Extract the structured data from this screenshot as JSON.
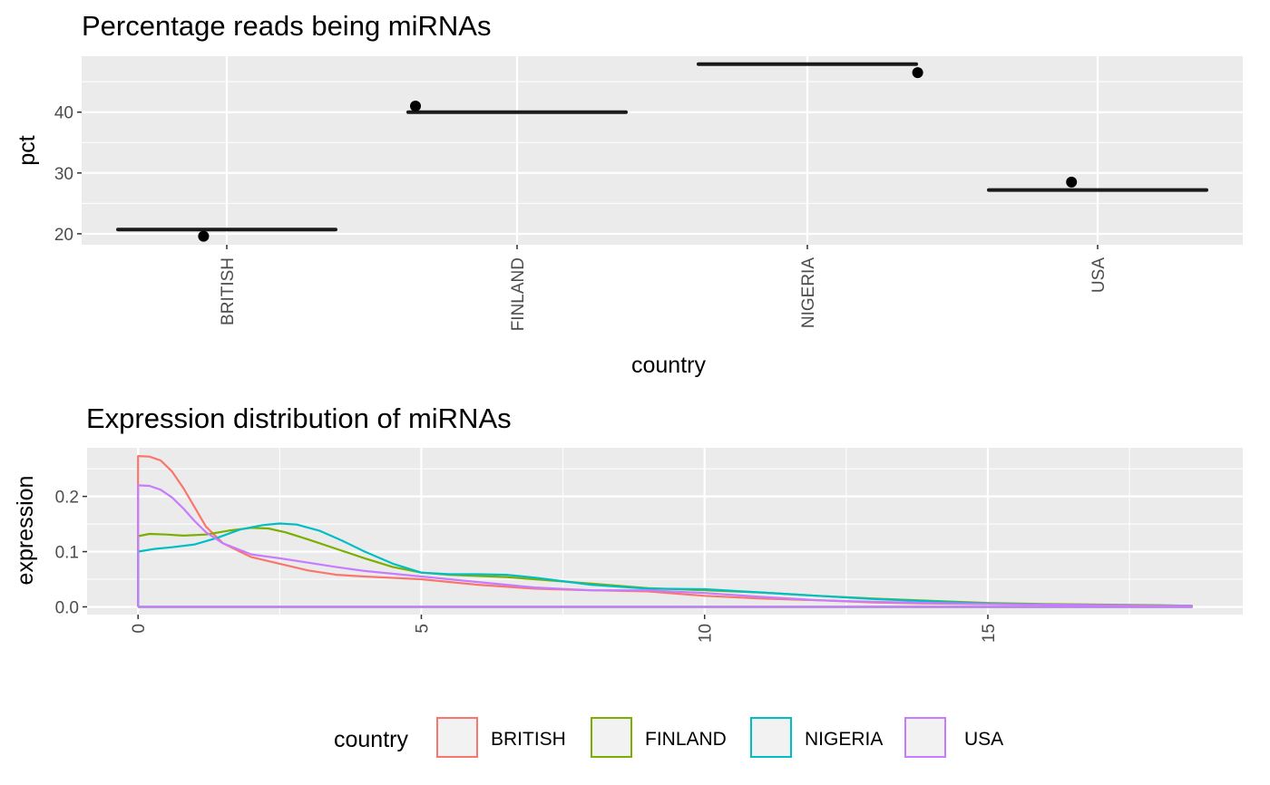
{
  "chart_data": [
    {
      "type": "scatter",
      "title": "Percentage reads being miRNAs",
      "xlabel": "country",
      "ylabel": "pct",
      "categories": [
        "BRITISH",
        "FINLAND",
        "NIGERIA",
        "USA"
      ],
      "y_ticks": [
        "20",
        "30",
        "40"
      ],
      "ylim": [
        18.2,
        49.2
      ],
      "points": [
        19.6,
        41.0,
        46.5,
        28.5
      ],
      "hlines": [
        20.7,
        40.0,
        47.9,
        27.2
      ],
      "grid": true
    },
    {
      "type": "line",
      "title": "Expression distribution of miRNAs",
      "xlabel": "",
      "ylabel": "expression",
      "x_ticks": [
        "0",
        "5",
        "10",
        "15"
      ],
      "y_ticks": [
        "0.0",
        "0.1",
        "0.2"
      ],
      "xlim": [
        -0.9,
        19.5
      ],
      "ylim": [
        -0.014,
        0.288
      ],
      "grid": true,
      "series": [
        {
          "name": "BRITISH",
          "color": "#F8766D",
          "x": [
            0,
            0.2,
            0.4,
            0.6,
            0.8,
            1.0,
            1.2,
            1.5,
            2,
            2.5,
            3,
            3.5,
            4,
            5,
            6,
            7,
            8,
            9,
            10,
            11,
            12,
            13,
            14,
            15,
            16,
            17,
            18,
            18.6
          ],
          "y": [
            0.273,
            0.272,
            0.265,
            0.245,
            0.215,
            0.18,
            0.145,
            0.115,
            0.09,
            0.078,
            0.066,
            0.058,
            0.055,
            0.05,
            0.04,
            0.033,
            0.03,
            0.028,
            0.02,
            0.015,
            0.012,
            0.008,
            0.006,
            0.005,
            0.004,
            0.003,
            0.002,
            0.002
          ]
        },
        {
          "name": "FINLAND",
          "color": "#7CAE00",
          "x": [
            0,
            0.2,
            0.5,
            0.8,
            1.2,
            1.6,
            2,
            2.3,
            2.6,
            3,
            3.5,
            4,
            4.5,
            5,
            5.5,
            6,
            6.5,
            7,
            8,
            9,
            10,
            11,
            12,
            13,
            14,
            15,
            16,
            17,
            18,
            18.6
          ],
          "y": [
            0.128,
            0.132,
            0.131,
            0.129,
            0.131,
            0.138,
            0.143,
            0.142,
            0.135,
            0.122,
            0.105,
            0.088,
            0.072,
            0.062,
            0.058,
            0.056,
            0.054,
            0.05,
            0.042,
            0.034,
            0.03,
            0.026,
            0.02,
            0.015,
            0.011,
            0.007,
            0.005,
            0.004,
            0.003,
            0.002
          ]
        },
        {
          "name": "NIGERIA",
          "color": "#00BFC4",
          "x": [
            0,
            0.3,
            0.6,
            1,
            1.4,
            1.8,
            2.2,
            2.5,
            2.8,
            3.2,
            3.6,
            4,
            4.5,
            5,
            5.5,
            6,
            6.5,
            7,
            8,
            9,
            10,
            11,
            12,
            13,
            14,
            15,
            16,
            17,
            18,
            18.6
          ],
          "y": [
            0.1,
            0.105,
            0.108,
            0.113,
            0.125,
            0.14,
            0.148,
            0.151,
            0.149,
            0.138,
            0.12,
            0.1,
            0.078,
            0.062,
            0.059,
            0.059,
            0.058,
            0.053,
            0.04,
            0.033,
            0.032,
            0.026,
            0.02,
            0.014,
            0.01,
            0.006,
            0.004,
            0.003,
            0.002,
            0.002
          ]
        },
        {
          "name": "USA",
          "color": "#C77CFF",
          "x": [
            0,
            0.2,
            0.4,
            0.6,
            0.8,
            1.0,
            1.2,
            1.5,
            2,
            2.5,
            3,
            3.5,
            4,
            5,
            6,
            7,
            8,
            9,
            10,
            11,
            12,
            13,
            14,
            15,
            16,
            17,
            18,
            18.6
          ],
          "y": [
            0.22,
            0.219,
            0.212,
            0.198,
            0.178,
            0.155,
            0.135,
            0.115,
            0.095,
            0.088,
            0.08,
            0.072,
            0.065,
            0.055,
            0.045,
            0.035,
            0.03,
            0.03,
            0.025,
            0.018,
            0.012,
            0.009,
            0.007,
            0.005,
            0.004,
            0.003,
            0.002,
            0.002
          ]
        }
      ]
    }
  ],
  "legend": {
    "title": "country",
    "position": "bottom",
    "items": [
      {
        "label": "BRITISH",
        "color": "#F8766D"
      },
      {
        "label": "FINLAND",
        "color": "#7CAE00"
      },
      {
        "label": "NIGERIA",
        "color": "#00BFC4"
      },
      {
        "label": "USA",
        "color": "#C77CFF"
      }
    ]
  },
  "colors": {
    "panel": "#EBEBEB",
    "grid": "#FFFFFF",
    "point": "#000000",
    "hline": "#1a1a1a"
  }
}
